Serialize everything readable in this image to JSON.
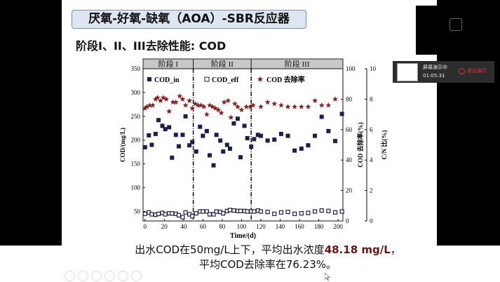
{
  "slide": {
    "title": "厌氧-好氧-缺氧（AOA）-SBR反应器",
    "subtitle": "阶段I、II、III去除性能: COD",
    "caption_line1_prefix": "出水COD在50mg/L上下，平均出水浓度",
    "caption_line1_highlight": "48.18 mg/L",
    "caption_line1_suffix": "，",
    "caption_line2": "平均COD去除率在76.23%。",
    "highlight_color": "#6b1414"
  },
  "screen_share": {
    "status": "屏幕演示中",
    "time": "01:05:31",
    "stop_label": "退出演示",
    "stop_color": "#e53935"
  },
  "toolbar_icons": [
    "prev-icon",
    "next-icon",
    "pen-icon",
    "grid-icon",
    "zoom-icon",
    "more-icon"
  ],
  "chart_data": {
    "type": "scatter",
    "xlabel": "Time/(d)",
    "ylabel": "COD/(mg/L)",
    "y2label": "COD 去除率(%)",
    "y3label": "C/N 比(%)",
    "xlim": [
      -2,
      205
    ],
    "ylim": [
      30,
      350
    ],
    "y2lim": [
      0,
      100
    ],
    "y3lim": [
      0,
      10
    ],
    "xticks": [
      0,
      20,
      40,
      60,
      80,
      100,
      120,
      140,
      160,
      180,
      200
    ],
    "yticks": [
      50,
      100,
      150,
      200,
      250,
      300,
      350
    ],
    "y2ticks": [
      0,
      20,
      40,
      60,
      80,
      100
    ],
    "y3ticks": [
      0,
      2,
      4,
      6,
      8,
      10
    ],
    "stages": [
      {
        "label": "阶段 I",
        "start": -2,
        "end": 50
      },
      {
        "label": "阶段 II",
        "start": 50,
        "end": 110
      },
      {
        "label": "阶段 III",
        "start": 110,
        "end": 205
      }
    ],
    "legend": [
      "COD_in",
      "COD_eff",
      "COD 去除率"
    ],
    "legend_placement": "top",
    "series": [
      {
        "name": "COD_in",
        "axis": "left",
        "color": "#1a1f4d",
        "x": [
          0,
          4,
          7,
          11,
          14,
          18,
          21,
          25,
          28,
          32,
          35,
          39,
          42,
          46,
          49,
          53,
          57,
          60,
          64,
          67,
          71,
          74,
          78,
          81,
          85,
          88,
          92,
          96,
          99,
          103,
          106,
          110,
          113,
          117,
          120,
          127,
          134,
          141,
          148,
          155,
          162,
          169,
          176,
          183,
          190,
          197,
          204
        ],
        "y": [
          185,
          210,
          190,
          213,
          242,
          230,
          223,
          227,
          163,
          211,
          187,
          211,
          250,
          189,
          196,
          176,
          228,
          209,
          219,
          168,
          147,
          211,
          199,
          176,
          190,
          182,
          235,
          245,
          164,
          230,
          204,
          186,
          202,
          211,
          209,
          199,
          201,
          213,
          209,
          178,
          182,
          189,
          209,
          249,
          219,
          198,
          255
        ]
      },
      {
        "name": "COD_eff",
        "axis": "left",
        "color": "#1a1f4d",
        "x": [
          0,
          4,
          7,
          11,
          14,
          18,
          21,
          25,
          28,
          32,
          35,
          39,
          42,
          46,
          49,
          53,
          57,
          60,
          64,
          67,
          71,
          74,
          78,
          81,
          85,
          88,
          92,
          96,
          99,
          103,
          106,
          110,
          113,
          117,
          120,
          127,
          134,
          141,
          148,
          155,
          162,
          169,
          176,
          183,
          190,
          197,
          204
        ],
        "y": [
          45,
          48,
          44,
          43,
          45,
          47,
          44,
          46,
          46,
          45,
          42,
          38,
          48,
          44,
          40,
          46,
          50,
          50,
          50,
          44,
          44,
          50,
          49,
          46,
          51,
          53,
          52,
          51,
          51,
          51,
          50,
          50,
          50,
          52,
          50,
          49,
          45,
          48,
          49,
          45,
          46,
          47,
          50,
          52,
          51,
          48,
          50
        ]
      },
      {
        "name": "COD 去除率",
        "axis": "right",
        "color": "#8b1a1a",
        "x": [
          0,
          2,
          5,
          8,
          11,
          13,
          16,
          19,
          22,
          25,
          29,
          32,
          36,
          39,
          42,
          46,
          49,
          52,
          55,
          58,
          61,
          64,
          67,
          70,
          73,
          76,
          79,
          82,
          86,
          89,
          93,
          96,
          100,
          105,
          109,
          112,
          120,
          127,
          134,
          141,
          148,
          155,
          162,
          169,
          176,
          183,
          190,
          197
        ],
        "y": [
          74,
          75,
          76,
          76,
          80,
          81,
          79,
          81,
          80,
          72,
          78,
          78,
          82,
          80,
          76,
          79,
          74,
          77,
          76,
          76,
          75,
          70,
          76,
          75,
          74,
          73,
          71,
          78,
          79,
          68,
          77,
          75,
          73,
          75,
          75,
          76,
          75,
          78,
          77,
          76,
          75,
          75,
          75,
          75,
          79,
          76,
          76,
          80
        ]
      }
    ]
  }
}
